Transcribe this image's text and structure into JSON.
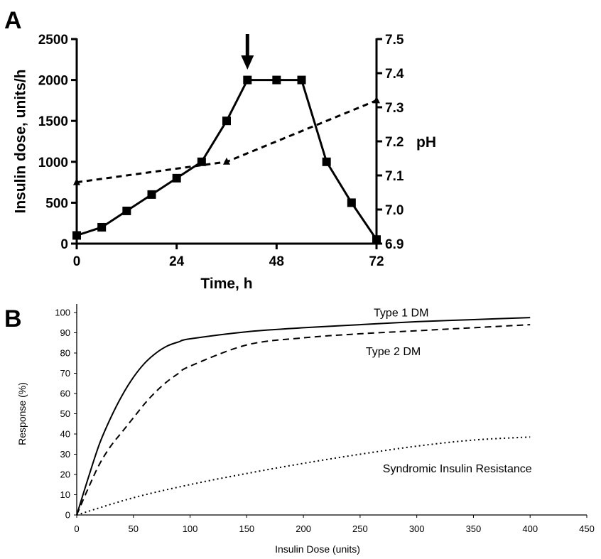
{
  "chart_data": [
    {
      "panel": "A",
      "type": "line",
      "xlabel": "Time, h",
      "ylabel": "Insulin dose, units/h",
      "y2label": "pH",
      "xlim": [
        0,
        72
      ],
      "xticks": [
        0,
        24,
        48,
        72
      ],
      "ylim": [
        0,
        2500
      ],
      "yticks": [
        0,
        500,
        1000,
        1500,
        2000,
        2500
      ],
      "y2lim": [
        6.9,
        7.5
      ],
      "y2ticks": [
        "6.9",
        "7.0",
        "7.1",
        "7.2",
        "7.3",
        "7.4",
        "7.5"
      ],
      "arrow_at_x": 41,
      "series": [
        {
          "axis": "left",
          "style": "solid-square",
          "x": [
            0,
            6,
            12,
            18,
            24,
            30,
            36,
            41,
            48,
            54,
            60,
            66,
            72
          ],
          "y": [
            100,
            200,
            400,
            600,
            800,
            1000,
            1500,
            2000,
            2000,
            2000,
            1000,
            500,
            50
          ]
        },
        {
          "axis": "right",
          "style": "dashed-triangle",
          "x": [
            0,
            36,
            72
          ],
          "y": [
            7.08,
            7.14,
            7.32
          ]
        }
      ]
    },
    {
      "panel": "B",
      "type": "line",
      "xlabel": "Insulin Dose (units)",
      "ylabel": "Response (%)",
      "xlim": [
        0,
        450
      ],
      "xticks": [
        0,
        50,
        100,
        150,
        200,
        250,
        300,
        350,
        400,
        450
      ],
      "ylim": [
        0,
        100
      ],
      "yticks": [
        0,
        10,
        20,
        30,
        40,
        50,
        60,
        70,
        80,
        90,
        100
      ],
      "series": [
        {
          "name": "Type 1 DM",
          "style": "solid",
          "x": [
            0,
            10,
            20,
            30,
            40,
            50,
            60,
            70,
            80,
            90,
            100,
            150,
            200,
            250,
            300,
            350,
            400
          ],
          "y": [
            0,
            18,
            35,
            48,
            59,
            68,
            75,
            80,
            83.5,
            85.5,
            87,
            90.5,
            92.5,
            94,
            95.5,
            96.5,
            97.5
          ]
        },
        {
          "name": "Type 2 DM",
          "style": "dashed",
          "x": [
            0,
            10,
            20,
            30,
            40,
            50,
            60,
            70,
            80,
            90,
            100,
            150,
            200,
            250,
            300,
            350,
            400
          ],
          "y": [
            0,
            13,
            25,
            34,
            41,
            48,
            55,
            61,
            66,
            70,
            73.5,
            84,
            87.5,
            89.5,
            91,
            92.5,
            94
          ]
        },
        {
          "name": "Syndromic Insulin Resistance",
          "style": "dotted",
          "x": [
            0,
            50,
            100,
            150,
            200,
            250,
            300,
            350,
            400
          ],
          "y": [
            0,
            8.5,
            15,
            20.5,
            25.5,
            30,
            34,
            37,
            38.5
          ]
        }
      ]
    }
  ]
}
